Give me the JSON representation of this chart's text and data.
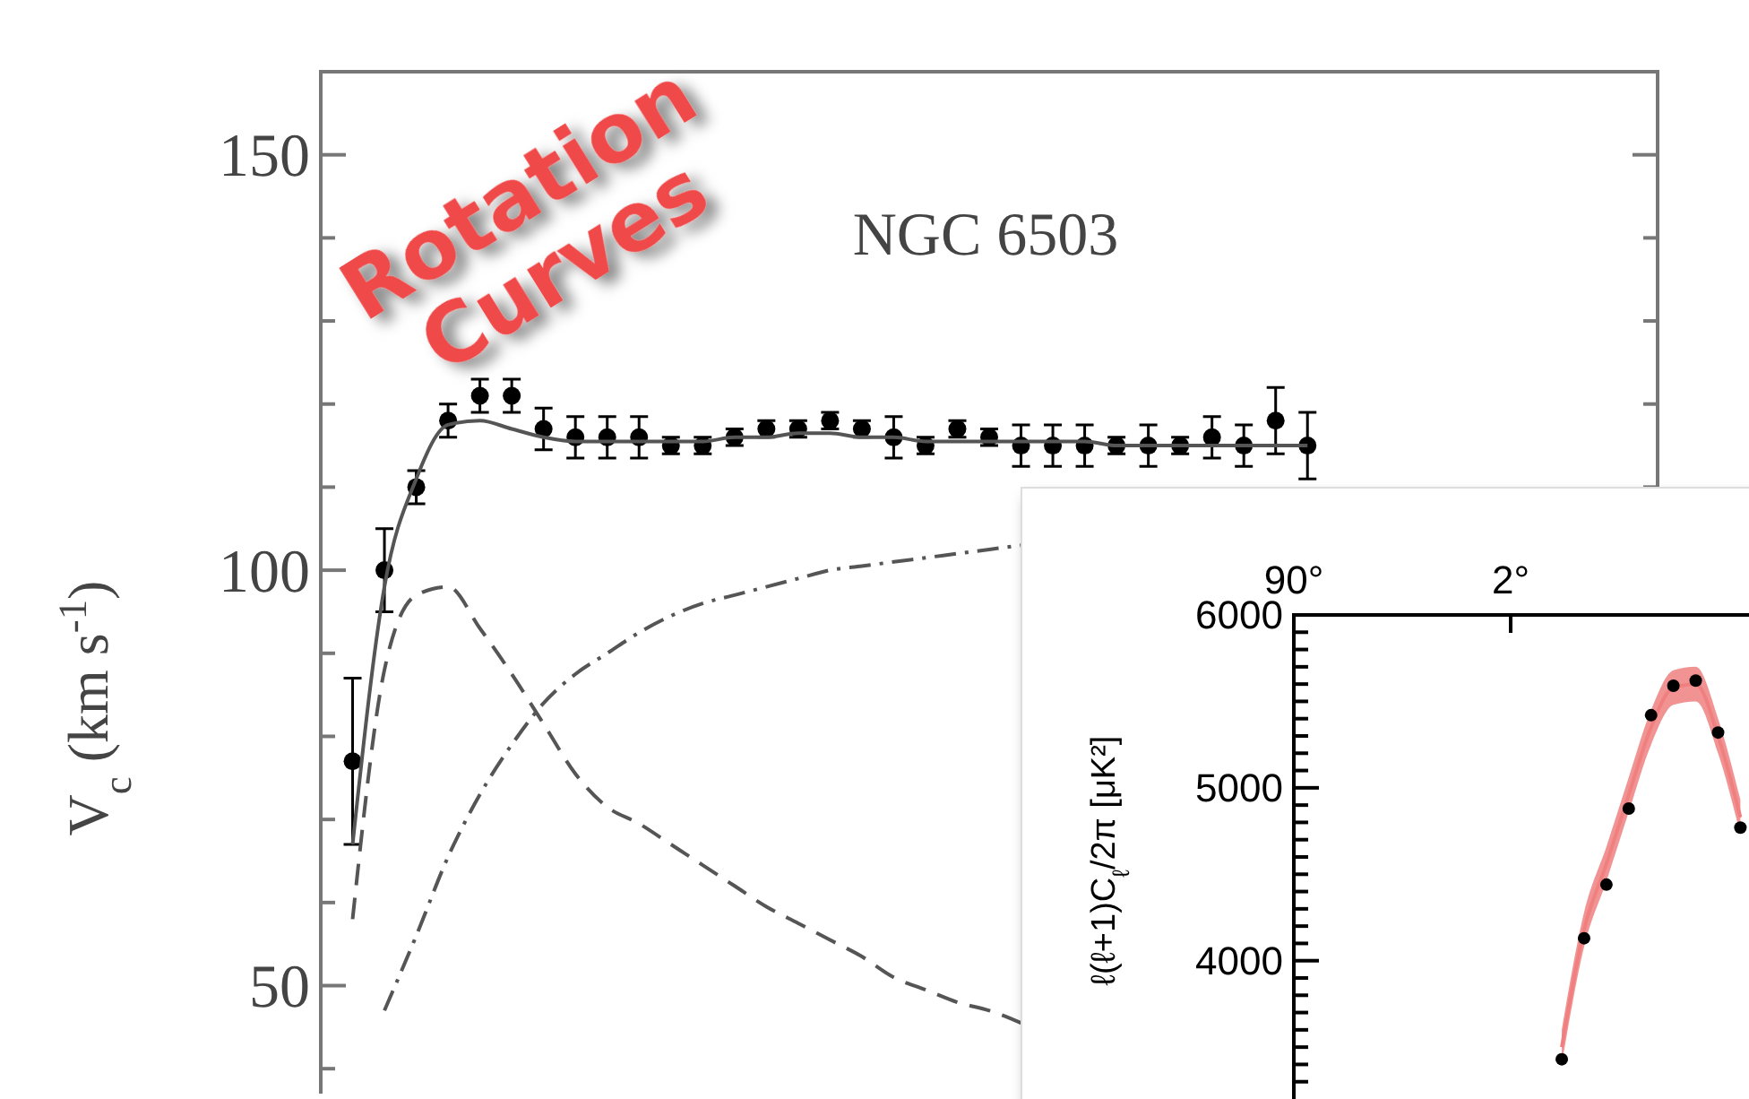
{
  "chart_data": [
    {
      "type": "scatter",
      "title": "NGC 6503",
      "ylabel": "V$_{c}$ (km s$^{-1}$)",
      "annotations": [
        "Rotation Curves"
      ],
      "categories": [
        null,
        null,
        null,
        null,
        null,
        null,
        null,
        null,
        null,
        null,
        null,
        null,
        null,
        null,
        null,
        null,
        null,
        null,
        null,
        null,
        null,
        null,
        null,
        null,
        null,
        null,
        null,
        null,
        null,
        null,
        null,
        null,
        null,
        null,
        null,
        null,
        null,
        null,
        null,
        null,
        null
      ],
      "series": [
        {
          "color": "#000000",
          "marker": "circle",
          "values": [
            77,
            100,
            110,
            118,
            121,
            121,
            117,
            116,
            116,
            116,
            115,
            115,
            116,
            117,
            117,
            118,
            117,
            116,
            115,
            117,
            116,
            115,
            115,
            115,
            115,
            115,
            115,
            116,
            115,
            118,
            115,
            null,
            null,
            null,
            null,
            null,
            null,
            null,
            null,
            null,
            null
          ],
          "errors": [
            10,
            5,
            2,
            2,
            2,
            2,
            2.5,
            2.5,
            2.5,
            2.5,
            1,
            1,
            1,
            1,
            1,
            1,
            1,
            2.5,
            1,
            1,
            1,
            2.5,
            2.5,
            2.5,
            1,
            2.5,
            1,
            2.5,
            2.5,
            4,
            4,
            null,
            null,
            null,
            null,
            null,
            null,
            null,
            null,
            null,
            null
          ]
        },
        {
          "type": "line",
          "color": "#555555",
          "line_style": "solid",
          "values": [
            67,
            98,
            111,
            117.5,
            118,
            117,
            116,
            115.5,
            115.5,
            115.5,
            115.5,
            115.5,
            116,
            116,
            116.5,
            116.5,
            116,
            116,
            115.5,
            115.5,
            115.5,
            115.5,
            115.5,
            115.5,
            115,
            115,
            115,
            115,
            115,
            115,
            115,
            null,
            null,
            null,
            null,
            null,
            null,
            null,
            null,
            null,
            null
          ]
        },
        {
          "type": "line",
          "color": "#555555",
          "line_style": "dashed",
          "values": [
            58,
            88,
            97,
            98,
            93,
            87.5,
            81.5,
            75.5,
            71.5,
            69.5,
            67,
            64.5,
            62,
            59.5,
            57.5,
            55.5,
            53.5,
            51,
            49.5,
            48,
            47,
            45.5,
            null,
            null,
            null,
            null,
            null,
            null,
            null,
            null,
            null,
            null,
            null,
            null,
            null,
            null,
            null,
            null,
            null,
            null,
            null
          ]
        },
        {
          "type": "line",
          "color": "#555555",
          "line_style": "dashdot",
          "values": [
            null,
            47,
            56,
            65.5,
            73,
            79,
            84,
            87.5,
            90,
            92.5,
            94.5,
            96,
            97,
            98,
            99,
            100,
            100.5,
            101,
            101.5,
            102,
            102.5,
            103,
            null,
            null,
            null,
            null,
            null,
            null,
            null,
            null,
            null,
            null,
            null,
            null,
            null,
            null,
            null,
            null,
            null,
            null,
            null
          ]
        }
      ],
      "ylim": [
        37,
        160
      ],
      "yticks": [
        {
          "value": 40,
          "label": null
        },
        50,
        {
          "value": 60,
          "label": null
        },
        {
          "value": 70,
          "label": null
        },
        {
          "value": 80,
          "label": null
        },
        {
          "value": 90,
          "label": null
        },
        100,
        {
          "value": 110,
          "label": null
        },
        {
          "value": 120,
          "label": null
        },
        {
          "value": 130,
          "label": null
        },
        {
          "value": 140,
          "label": null
        },
        150
      ],
      "tick_labels": "y",
      "grid": false
    },
    {
      "type": "scatter",
      "ylabel": "ℓ(ℓ+1)C$_{ℓ}$/2π [μK²]",
      "annotations": [
        "90°",
        "2°"
      ],
      "categories": [
        null,
        null,
        null,
        null,
        null,
        null,
        null,
        null,
        null,
        null,
        null,
        null,
        null,
        null,
        null,
        null,
        null,
        null,
        null,
        null,
        null
      ],
      "series": [
        {
          "type": "line",
          "color": "#f08080",
          "line_style": "solid",
          "values": [
            null,
            null,
            null,
            null,
            null,
            null,
            null,
            null,
            null,
            null,
            null,
            null,
            3500,
            4180,
            4560,
            4960,
            5350,
            5580,
            5600,
            5300,
            4830
          ],
          "lower": [
            null,
            null,
            null,
            null,
            null,
            null,
            null,
            null,
            null,
            null,
            null,
            null,
            3400,
            4080,
            4460,
            4860,
            5250,
            5480,
            5500,
            5200,
            4730
          ],
          "upper": [
            null,
            null,
            null,
            null,
            null,
            null,
            null,
            null,
            null,
            null,
            null,
            null,
            3600,
            4280,
            4660,
            5060,
            5450,
            5680,
            5700,
            5400,
            4930
          ]
        },
        {
          "color": "#000000",
          "marker": "circle",
          "values": [
            null,
            null,
            null,
            null,
            null,
            null,
            null,
            null,
            null,
            null,
            null,
            null,
            3430,
            4130,
            4440,
            4880,
            5420,
            5590,
            5620,
            5320,
            4770
          ]
        }
      ],
      "tick_labels": "y",
      "ylim": [
        3200,
        6000
      ],
      "yticks": [
        {
          "value": 3300,
          "label": null
        },
        {
          "value": 3400,
          "label": null
        },
        {
          "value": 3500,
          "label": null
        },
        {
          "value": 3600,
          "label": null
        },
        {
          "value": 3700,
          "label": null
        },
        {
          "value": 3800,
          "label": null
        },
        {
          "value": 3900,
          "label": null
        },
        4000,
        {
          "value": 4100,
          "label": null
        },
        {
          "value": 4200,
          "label": null
        },
        {
          "value": 4300,
          "label": null
        },
        {
          "value": 4400,
          "label": null
        },
        {
          "value": 4500,
          "label": null
        },
        {
          "value": 4600,
          "label": null
        },
        {
          "value": 4700,
          "label": null
        },
        {
          "value": 4800,
          "label": null
        },
        {
          "value": 4900,
          "label": null
        },
        5000,
        {
          "value": 5100,
          "label": null
        },
        {
          "value": 5200,
          "label": null
        },
        {
          "value": 5300,
          "label": null
        },
        {
          "value": 5400,
          "label": null
        },
        {
          "value": 5500,
          "label": null
        },
        {
          "value": 5600,
          "label": null
        },
        {
          "value": 5700,
          "label": null
        },
        {
          "value": 5800,
          "label": null
        },
        {
          "value": 5900,
          "label": null
        },
        6000
      ],
      "grid": false
    }
  ]
}
